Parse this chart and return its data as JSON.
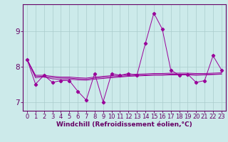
{
  "xlabel": "Windchill (Refroidissement éolien,°C)",
  "background_color": "#cceaea",
  "line_color": "#990099",
  "grid_color": "#aacccc",
  "x_values": [
    0,
    1,
    2,
    3,
    4,
    5,
    6,
    7,
    8,
    9,
    10,
    11,
    12,
    13,
    14,
    15,
    16,
    17,
    18,
    19,
    20,
    21,
    22,
    23
  ],
  "series_main": [
    8.2,
    7.5,
    7.75,
    7.55,
    7.6,
    7.6,
    7.3,
    7.05,
    7.8,
    7.0,
    7.8,
    7.75,
    7.8,
    7.75,
    8.65,
    9.5,
    9.05,
    7.9,
    7.75,
    7.78,
    7.55,
    7.6,
    8.3,
    7.9
  ],
  "series1": [
    8.2,
    7.75,
    7.75,
    7.72,
    7.7,
    7.7,
    7.68,
    7.67,
    7.7,
    7.72,
    7.74,
    7.75,
    7.77,
    7.78,
    7.79,
    7.8,
    7.8,
    7.81,
    7.81,
    7.81,
    7.8,
    7.8,
    7.81,
    7.82
  ],
  "series2": [
    8.2,
    7.72,
    7.72,
    7.69,
    7.67,
    7.67,
    7.65,
    7.64,
    7.67,
    7.69,
    7.71,
    7.72,
    7.74,
    7.75,
    7.76,
    7.77,
    7.77,
    7.78,
    7.78,
    7.78,
    7.77,
    7.77,
    7.78,
    7.79
  ],
  "series3": [
    8.2,
    7.68,
    7.7,
    7.65,
    7.63,
    7.64,
    7.62,
    7.61,
    7.64,
    7.66,
    7.68,
    7.7,
    7.72,
    7.73,
    7.74,
    7.75,
    7.75,
    7.76,
    7.76,
    7.76,
    7.75,
    7.76,
    7.77,
    7.78
  ],
  "ylim": [
    6.75,
    9.75
  ],
  "yticks": [
    7,
    8,
    9
  ],
  "xticks": [
    0,
    1,
    2,
    3,
    4,
    5,
    6,
    7,
    8,
    9,
    10,
    11,
    12,
    13,
    14,
    15,
    16,
    17,
    18,
    19,
    20,
    21,
    22,
    23
  ],
  "axis_color": "#660066",
  "tick_color": "#660066",
  "xlabel_fontsize": 6.5,
  "tick_fontsize": 6.0,
  "ytick_fontsize": 7.5
}
